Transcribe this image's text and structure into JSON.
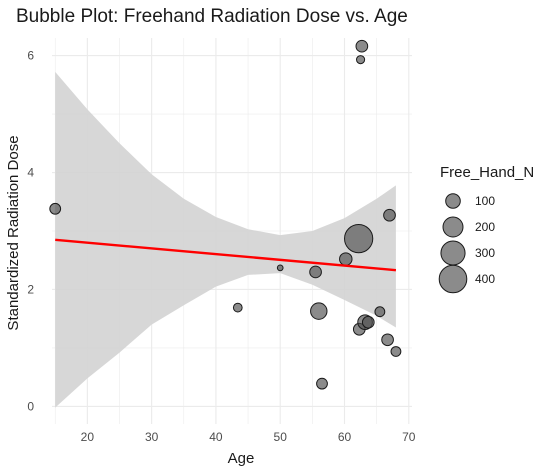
{
  "chart_data": {
    "type": "scatter",
    "title": "Bubble Plot: Freehand Radiation Dose vs. Age",
    "xlabel": "Age",
    "ylabel": "Standardized Radiation Dose",
    "xlim": [
      14.5,
      70.5
    ],
    "ylim": [
      -0.3,
      6.3
    ],
    "x_ticks": [
      20,
      30,
      40,
      50,
      60,
      70
    ],
    "y_ticks": [
      0,
      2,
      4,
      6
    ],
    "grid": true,
    "legend_position": "right",
    "size_legend": {
      "title": "Free_Hand_N",
      "values": [
        100,
        200,
        300,
        400
      ]
    },
    "points": [
      {
        "x": 15.0,
        "y": 3.38,
        "n": 50
      },
      {
        "x": 43.4,
        "y": 1.69,
        "n": 30
      },
      {
        "x": 50.0,
        "y": 2.37,
        "n": 10
      },
      {
        "x": 55.5,
        "y": 2.3,
        "n": 60
      },
      {
        "x": 56.0,
        "y": 1.63,
        "n": 130
      },
      {
        "x": 56.5,
        "y": 0.39,
        "n": 50
      },
      {
        "x": 60.2,
        "y": 2.52,
        "n": 70
      },
      {
        "x": 62.2,
        "y": 2.87,
        "n": 420
      },
      {
        "x": 62.3,
        "y": 1.32,
        "n": 60
      },
      {
        "x": 62.5,
        "y": 5.93,
        "n": 25
      },
      {
        "x": 62.7,
        "y": 6.16,
        "n": 60
      },
      {
        "x": 63.2,
        "y": 1.44,
        "n": 100
      },
      {
        "x": 63.7,
        "y": 1.44,
        "n": 60
      },
      {
        "x": 65.5,
        "y": 1.62,
        "n": 40
      },
      {
        "x": 66.7,
        "y": 1.14,
        "n": 60
      },
      {
        "x": 67.0,
        "y": 3.27,
        "n": 60
      },
      {
        "x": 68.0,
        "y": 0.94,
        "n": 40
      }
    ],
    "regression": {
      "x": [
        15.0,
        68.0
      ],
      "y": [
        2.85,
        2.33
      ],
      "ci_x": [
        15,
        20,
        25,
        30,
        35,
        40,
        45,
        50,
        55,
        60,
        65,
        68
      ],
      "ci_upper": [
        5.72,
        5.08,
        4.5,
        3.97,
        3.55,
        3.24,
        3.03,
        2.93,
        3.0,
        3.22,
        3.55,
        3.78
      ],
      "ci_lower": [
        -0.02,
        0.48,
        0.92,
        1.4,
        1.73,
        2.05,
        2.25,
        2.28,
        2.08,
        1.82,
        1.55,
        1.35
      ]
    },
    "colors": {
      "point_fill": "#4d4d4d",
      "point_stroke": "#1a1a1a",
      "point_opacity": 0.65,
      "regression_line": "#ff0000",
      "ci_band": "#d3d3d3",
      "grid": "#ebebeb"
    }
  }
}
